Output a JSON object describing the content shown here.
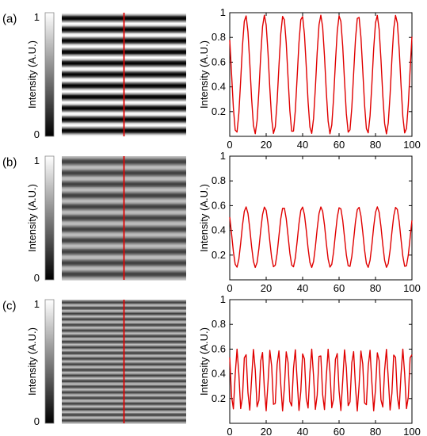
{
  "panels": [
    {
      "label": "(a)",
      "colorbar": {
        "label": "Intensity (A.U.)",
        "ticks": [
          "0",
          "1"
        ]
      },
      "fringe_image": {
        "stripes": 11,
        "contrast": 1.0,
        "cut_line_color": "#e00000"
      }
    },
    {
      "label": "(b)",
      "colorbar": {
        "label": "Intensity (A.U.)",
        "ticks": [
          "0",
          "1"
        ]
      },
      "fringe_image": {
        "stripes": 11,
        "contrast": 0.5,
        "cut_line_color": "#e00000"
      }
    },
    {
      "label": "(c)",
      "colorbar": {
        "label": "Intensity (A.U.)",
        "ticks": [
          "0",
          "1"
        ]
      },
      "fringe_image": {
        "stripes": 22,
        "contrast": 0.5,
        "cut_line_color": "#e00000"
      }
    }
  ],
  "chart_data": [
    {
      "type": "line",
      "ylabel": "Intensity (A.U.)",
      "xlim": [
        0,
        100
      ],
      "ylim": [
        0,
        1
      ],
      "xticks": [
        "0",
        "20",
        "40",
        "60",
        "80",
        "100"
      ],
      "yticks": [
        "0.2",
        "0.4",
        "0.6",
        "0.8",
        "1"
      ],
      "line_color": "#e00000",
      "series": [
        {
          "period": 10.3,
          "phase": 0.95,
          "min": 0.02,
          "max": 0.98
        }
      ]
    },
    {
      "type": "line",
      "ylabel": "Intensity (A.U.)",
      "xlim": [
        0,
        100
      ],
      "ylim": [
        0,
        1
      ],
      "xticks": [
        "0",
        "20",
        "40",
        "60",
        "80",
        "100"
      ],
      "yticks": [
        "0.2",
        "0.4",
        "0.6",
        "0.8",
        "1"
      ],
      "line_color": "#e00000",
      "series": [
        {
          "period": 10.3,
          "phase": 0.85,
          "min": 0.1,
          "max": 0.59
        }
      ]
    },
    {
      "type": "line",
      "ylabel": "Intensity (A.U.)",
      "xlim": [
        0,
        100
      ],
      "ylim": [
        0,
        1
      ],
      "xticks": [
        "0",
        "20",
        "40",
        "60",
        "80",
        "100"
      ],
      "yticks": [
        "0.2",
        "0.4",
        "0.6",
        "0.8",
        "1"
      ],
      "line_color": "#e00000",
      "series": [
        {
          "period": 4.55,
          "phase": 0.75,
          "min": 0.1,
          "max": 0.6
        }
      ]
    }
  ]
}
